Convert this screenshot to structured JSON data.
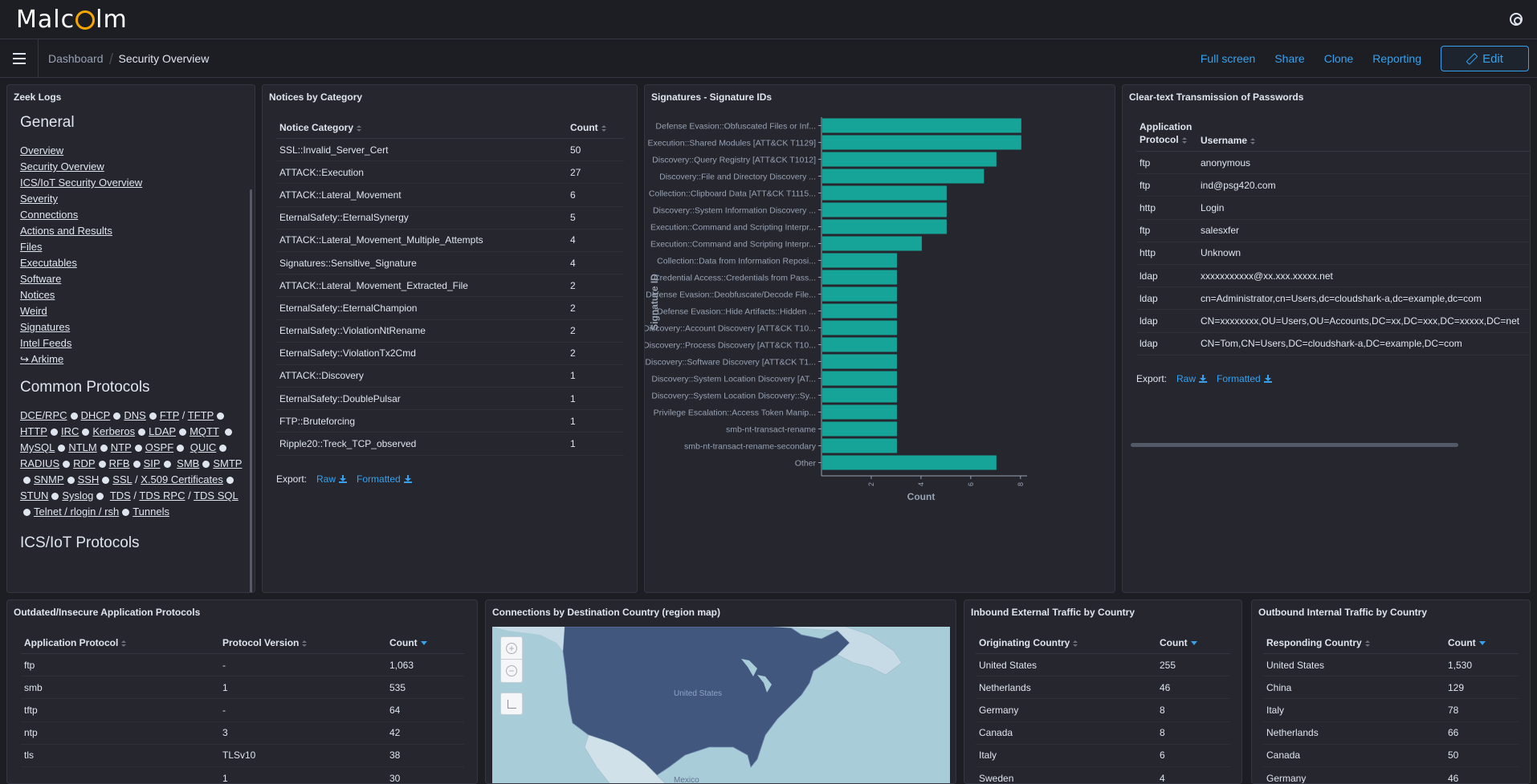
{
  "app": {
    "logo_text_1": "Malc",
    "logo_text_2": "lm"
  },
  "nav": {
    "breadcrumb_root": "Dashboard",
    "breadcrumb_current": "Security Overview",
    "actions": [
      "Full screen",
      "Share",
      "Clone",
      "Reporting"
    ],
    "edit_label": "Edit"
  },
  "zeek": {
    "title": "Zeek Logs",
    "general_heading": "General",
    "general_links": [
      "Overview",
      "Security Overview",
      "ICS/IoT Security Overview",
      "Severity",
      "Connections",
      "Actions and Results",
      "Files",
      "Executables",
      "Software",
      "Notices",
      "Weird",
      "Signatures",
      "Intel Feeds",
      "↪ Arkime"
    ],
    "common_heading": "Common Protocols",
    "ics_heading": "ICS/IoT Protocols"
  },
  "notices": {
    "title": "Notices by Category",
    "columns": [
      "Notice Category",
      "Count"
    ],
    "rows": [
      [
        "SSL::Invalid_Server_Cert",
        "50"
      ],
      [
        "ATTACK::Execution",
        "27"
      ],
      [
        "ATTACK::Lateral_Movement",
        "6"
      ],
      [
        "EternalSafety::EternalSynergy",
        "5"
      ],
      [
        "ATTACK::Lateral_Movement_Multiple_Attempts",
        "4"
      ],
      [
        "Signatures::Sensitive_Signature",
        "4"
      ],
      [
        "ATTACK::Lateral_Movement_Extracted_File",
        "2"
      ],
      [
        "EternalSafety::EternalChampion",
        "2"
      ],
      [
        "EternalSafety::ViolationNtRename",
        "2"
      ],
      [
        "EternalSafety::ViolationTx2Cmd",
        "2"
      ],
      [
        "ATTACK::Discovery",
        "1"
      ],
      [
        "EternalSafety::DoublePulsar",
        "1"
      ],
      [
        "FTP::Bruteforcing",
        "1"
      ],
      [
        "Ripple20::Treck_TCP_observed",
        "1"
      ]
    ],
    "export_label": "Export:",
    "raw_label": "Raw",
    "formatted_label": "Formatted"
  },
  "chart_data": {
    "type": "bar",
    "orientation": "horizontal",
    "title": "Signatures - Signature IDs",
    "xlabel": "Count",
    "ylabel": "Signature ID",
    "xticks": [
      "2",
      "4",
      "6",
      "8"
    ],
    "xlim": [
      0,
      8.2
    ],
    "categories": [
      "Defense Evasion::Obfuscated Files or Inf...",
      "Execution::Shared Modules [ATT&CK T1129]",
      "Discovery::Query Registry [ATT&CK T1012]",
      "Discovery::File and Directory Discovery ...",
      "Collection::Clipboard Data [ATT&CK T1115...",
      "Discovery::System Information Discovery ...",
      "Execution::Command and Scripting Interpr...",
      "Execution::Command and Scripting Interpr...",
      "Collection::Data from Information Reposi...",
      "Credential Access::Credentials from Pass...",
      "Defense Evasion::Deobfuscate/Decode File...",
      "Defense Evasion::Hide Artifacts::Hidden ...",
      "Discovery::Account Discovery [ATT&CK T10...",
      "Discovery::Process Discovery [ATT&CK T10...",
      "Discovery::Software Discovery [ATT&CK T1...",
      "Discovery::System Location Discovery [AT...",
      "Discovery::System Location Discovery::Sy...",
      "Privilege Escalation::Access Token Manip...",
      "smb-nt-transact-rename",
      "smb-nt-transact-rename-secondary",
      "Other"
    ],
    "values": [
      8,
      8,
      7,
      6.5,
      5,
      5,
      5,
      4,
      3,
      3,
      3,
      3,
      3,
      3,
      3,
      3,
      3,
      3,
      3,
      3,
      7
    ],
    "color": "#16a499"
  },
  "passwords": {
    "title": "Clear-text Transmission of Passwords",
    "col1_line1": "Application",
    "col1_line2": "Protocol",
    "col2": "Username",
    "rows": [
      [
        "ftp",
        "anonymous"
      ],
      [
        "ftp",
        "ind@psg420.com"
      ],
      [
        "http",
        "Login"
      ],
      [
        "ftp",
        "salesxfer"
      ],
      [
        "http",
        "Unknown"
      ],
      [
        "ldap",
        "xxxxxxxxxxx@xx.xxx.xxxxx.net"
      ],
      [
        "ldap",
        "cn=Administrator,cn=Users,dc=cloudshark-a,dc=example,dc=com"
      ],
      [
        "ldap",
        "CN=xxxxxxxx,OU=Users,OU=Accounts,DC=xx,DC=xxx,DC=xxxxx,DC=net"
      ],
      [
        "ldap",
        "CN=Tom,CN=Users,DC=cloudshark-a,DC=example,DC=com"
      ]
    ],
    "export_label": "Export:",
    "raw_label": "Raw",
    "formatted_label": "Formatted"
  },
  "outdated": {
    "title": "Outdated/Insecure Application Protocols",
    "columns": [
      "Application Protocol",
      "Protocol Version",
      "Count"
    ],
    "rows": [
      [
        "ftp",
        "-",
        "1,063"
      ],
      [
        "smb",
        "1",
        "535"
      ],
      [
        "tftp",
        "-",
        "64"
      ],
      [
        "ntp",
        "3",
        "42"
      ],
      [
        "tls",
        "TLSv10",
        "38"
      ],
      [
        "",
        "1",
        "30"
      ]
    ]
  },
  "map": {
    "title": "Connections by Destination Country (region map)",
    "label_us": "United States",
    "label_mx": "Mexico"
  },
  "inbound": {
    "title": "Inbound External Traffic by Country",
    "columns": [
      "Originating Country",
      "Count"
    ],
    "rows": [
      [
        "United States",
        "255"
      ],
      [
        "Netherlands",
        "46"
      ],
      [
        "Germany",
        "8"
      ],
      [
        "Canada",
        "8"
      ],
      [
        "Italy",
        "6"
      ],
      [
        "Sweden",
        "4"
      ]
    ]
  },
  "outbound": {
    "title": "Outbound Internal Traffic by Country",
    "columns": [
      "Responding Country",
      "Count"
    ],
    "rows": [
      [
        "United States",
        "1,530"
      ],
      [
        "China",
        "129"
      ],
      [
        "Italy",
        "78"
      ],
      [
        "Netherlands",
        "66"
      ],
      [
        "Canada",
        "50"
      ],
      [
        "Germany",
        "46"
      ]
    ]
  }
}
